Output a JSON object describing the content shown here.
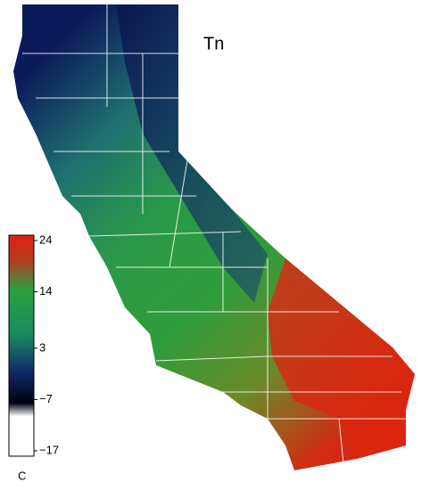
{
  "map": {
    "title": "Tn",
    "legend": {
      "unit": "C",
      "ticks": [
        24,
        14,
        3,
        {
          "value": -7,
          "label": "−7"
        },
        {
          "value": -17,
          "label": "−17"
        }
      ]
    }
  }
}
